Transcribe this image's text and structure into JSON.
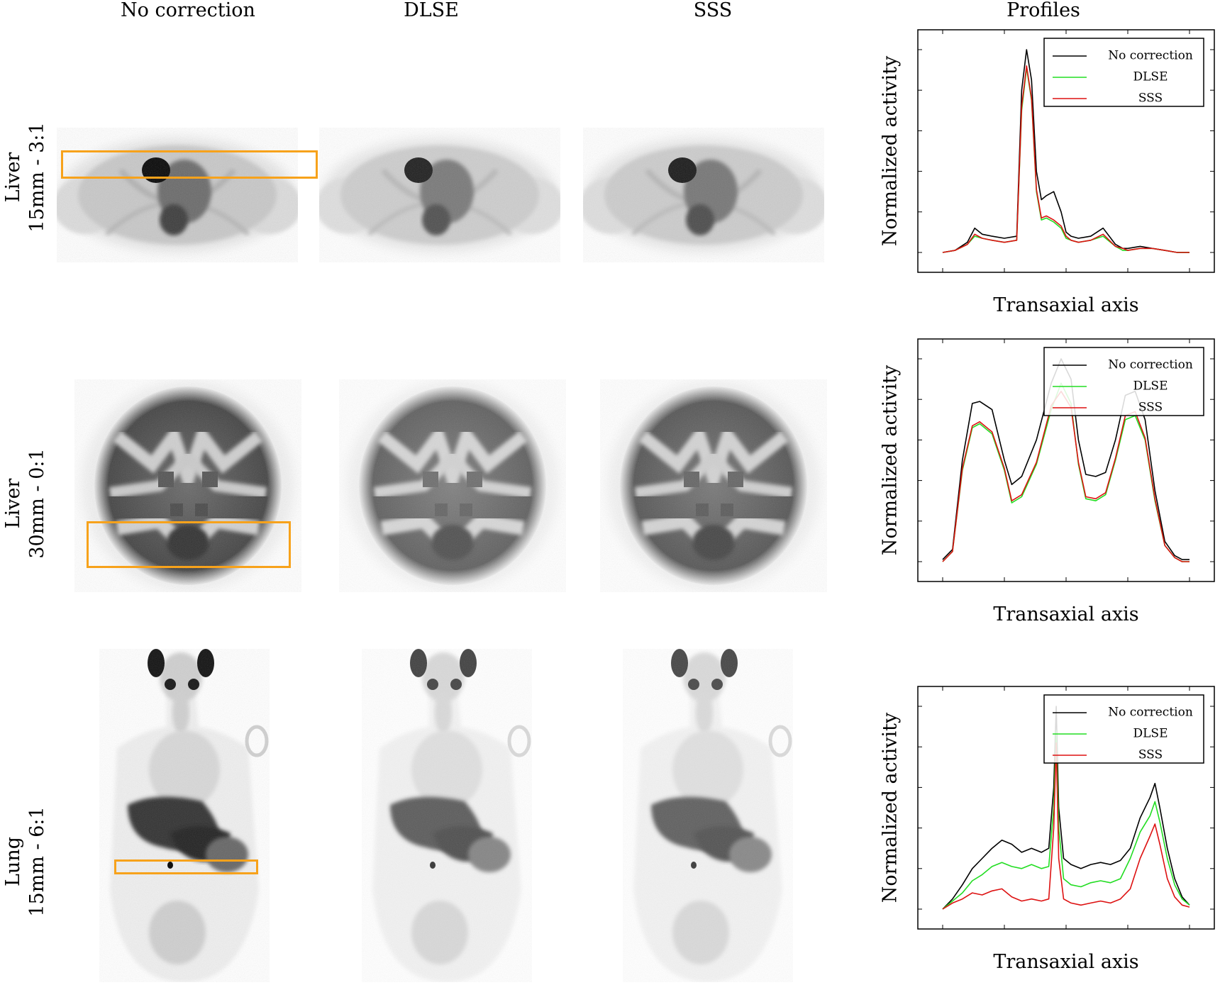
{
  "columns": [
    "No correction",
    "DLSE",
    "SSS",
    "Profiles"
  ],
  "rows": [
    {
      "line1": "Liver",
      "line2": "15mm - 3:1"
    },
    {
      "line1": "Liver",
      "line2": "30mm - 0:1"
    },
    {
      "line1": "Lung",
      "line2": "15mm - 6:1"
    }
  ],
  "colors": {
    "roi": "#f7a21b",
    "no_correction": "#000000",
    "dlse": "#22dd22",
    "sss": "#dd1111"
  },
  "chart_data": [
    {
      "type": "line",
      "xlabel": "Transaxial axis",
      "ylabel": "Normalized activity",
      "legend_position": "top-right",
      "grid": false,
      "ylim": [
        0,
        1.1
      ],
      "x": [
        0,
        0.05,
        0.1,
        0.13,
        0.16,
        0.2,
        0.25,
        0.3,
        0.32,
        0.34,
        0.36,
        0.38,
        0.4,
        0.42,
        0.45,
        0.48,
        0.5,
        0.52,
        0.55,
        0.6,
        0.65,
        0.7,
        0.73,
        0.75,
        0.8,
        0.85,
        0.9,
        0.95,
        1.0
      ],
      "series": [
        {
          "name": "No correction",
          "values": [
            0.0,
            0.01,
            0.05,
            0.12,
            0.09,
            0.08,
            0.07,
            0.08,
            0.8,
            1.0,
            0.85,
            0.4,
            0.26,
            0.28,
            0.3,
            0.2,
            0.1,
            0.08,
            0.07,
            0.08,
            0.12,
            0.04,
            0.02,
            0.02,
            0.03,
            0.02,
            0.01,
            0.0,
            0.0
          ]
        },
        {
          "name": "DLSE",
          "values": [
            0.0,
            0.01,
            0.04,
            0.08,
            0.07,
            0.06,
            0.05,
            0.06,
            0.7,
            0.91,
            0.75,
            0.3,
            0.16,
            0.17,
            0.15,
            0.12,
            0.07,
            0.06,
            0.05,
            0.06,
            0.08,
            0.03,
            0.01,
            0.01,
            0.02,
            0.02,
            0.01,
            0.0,
            0.0
          ]
        },
        {
          "name": "SSS",
          "values": [
            0.0,
            0.01,
            0.04,
            0.09,
            0.07,
            0.06,
            0.05,
            0.06,
            0.72,
            0.92,
            0.76,
            0.31,
            0.17,
            0.18,
            0.16,
            0.13,
            0.08,
            0.06,
            0.05,
            0.06,
            0.09,
            0.03,
            0.02,
            0.01,
            0.02,
            0.02,
            0.01,
            0.0,
            0.0
          ]
        }
      ]
    },
    {
      "type": "line",
      "xlabel": "Transaxial axis",
      "ylabel": "Normalized activity",
      "legend_position": "top-right",
      "grid": false,
      "ylim": [
        0,
        1.1
      ],
      "x": [
        0,
        0.04,
        0.08,
        0.12,
        0.15,
        0.2,
        0.25,
        0.28,
        0.32,
        0.38,
        0.44,
        0.48,
        0.52,
        0.55,
        0.58,
        0.62,
        0.66,
        0.7,
        0.74,
        0.78,
        0.82,
        0.86,
        0.9,
        0.94,
        0.97,
        1.0
      ],
      "series": [
        {
          "name": "No correction",
          "values": [
            0.01,
            0.06,
            0.5,
            0.78,
            0.79,
            0.75,
            0.5,
            0.38,
            0.42,
            0.6,
            0.88,
            1.0,
            0.9,
            0.6,
            0.43,
            0.42,
            0.44,
            0.6,
            0.82,
            0.84,
            0.7,
            0.35,
            0.1,
            0.03,
            0.01,
            0.01
          ]
        },
        {
          "name": "DLSE",
          "values": [
            0.0,
            0.05,
            0.45,
            0.66,
            0.68,
            0.63,
            0.45,
            0.29,
            0.32,
            0.48,
            0.75,
            0.88,
            0.78,
            0.48,
            0.31,
            0.3,
            0.33,
            0.5,
            0.7,
            0.72,
            0.6,
            0.3,
            0.08,
            0.02,
            0.0,
            0.0
          ]
        },
        {
          "name": "SSS",
          "values": [
            0.0,
            0.05,
            0.46,
            0.67,
            0.69,
            0.64,
            0.46,
            0.3,
            0.33,
            0.49,
            0.77,
            0.84,
            0.76,
            0.49,
            0.32,
            0.31,
            0.34,
            0.51,
            0.72,
            0.74,
            0.61,
            0.31,
            0.08,
            0.02,
            0.0,
            0.0
          ]
        }
      ]
    },
    {
      "type": "line",
      "xlabel": "Transaxial axis",
      "ylabel": "Normalized activity",
      "legend_position": "top-right",
      "grid": false,
      "ylim": [
        0,
        1.1
      ],
      "x": [
        0,
        0.04,
        0.08,
        0.12,
        0.16,
        0.2,
        0.24,
        0.28,
        0.32,
        0.36,
        0.4,
        0.43,
        0.45,
        0.46,
        0.47,
        0.49,
        0.52,
        0.56,
        0.6,
        0.64,
        0.68,
        0.72,
        0.76,
        0.8,
        0.84,
        0.86,
        0.88,
        0.91,
        0.94,
        0.97,
        1.0
      ],
      "series": [
        {
          "name": "No correction",
          "values": [
            0.0,
            0.05,
            0.12,
            0.2,
            0.25,
            0.3,
            0.34,
            0.32,
            0.28,
            0.3,
            0.28,
            0.3,
            0.6,
            1.0,
            0.5,
            0.25,
            0.22,
            0.2,
            0.22,
            0.23,
            0.22,
            0.24,
            0.3,
            0.45,
            0.55,
            0.62,
            0.5,
            0.3,
            0.15,
            0.06,
            0.02
          ]
        },
        {
          "name": "DLSE",
          "values": [
            0.0,
            0.04,
            0.08,
            0.14,
            0.17,
            0.21,
            0.23,
            0.21,
            0.2,
            0.22,
            0.2,
            0.21,
            0.5,
            0.88,
            0.4,
            0.15,
            0.12,
            0.11,
            0.13,
            0.14,
            0.13,
            0.15,
            0.25,
            0.38,
            0.46,
            0.53,
            0.43,
            0.25,
            0.12,
            0.05,
            0.02
          ]
        },
        {
          "name": "SSS",
          "values": [
            0.0,
            0.03,
            0.05,
            0.08,
            0.07,
            0.09,
            0.1,
            0.06,
            0.04,
            0.05,
            0.04,
            0.05,
            0.4,
            0.82,
            0.25,
            0.05,
            0.03,
            0.02,
            0.03,
            0.04,
            0.03,
            0.05,
            0.1,
            0.25,
            0.36,
            0.42,
            0.32,
            0.15,
            0.06,
            0.02,
            0.01
          ]
        }
      ]
    }
  ]
}
